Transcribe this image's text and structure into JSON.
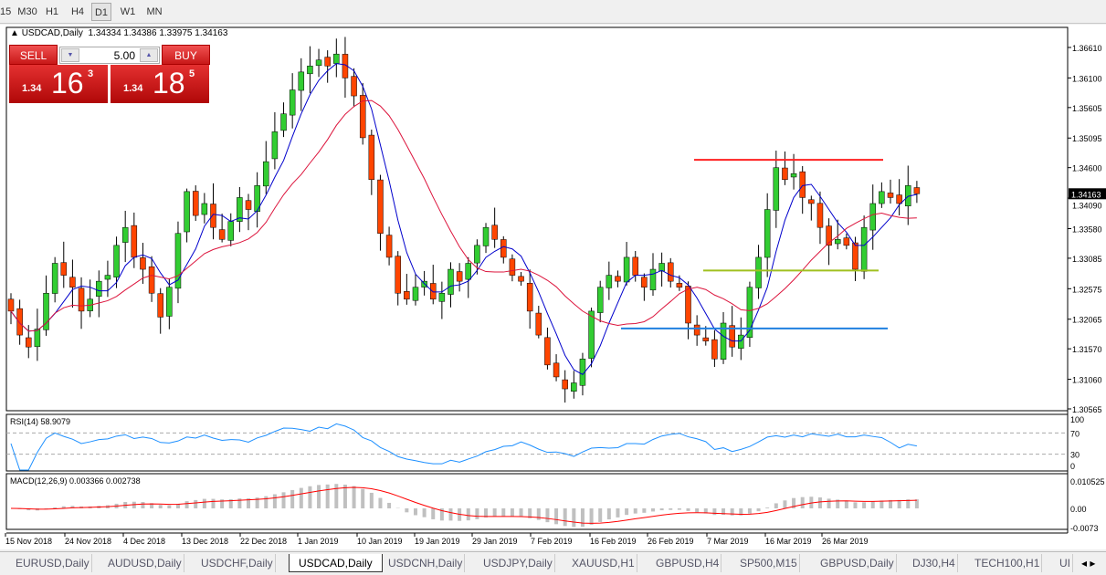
{
  "toolbar": {
    "timeframes": [
      "15",
      "M30",
      "H1",
      "H4",
      "D1",
      "W1",
      "MN"
    ],
    "active": "D1"
  },
  "chart": {
    "header": "USDCAD,Daily",
    "ohlc": "1.34334 1.34386 1.33975 1.34163",
    "sell_label": "SELL",
    "buy_label": "BUY",
    "lot": "5.00",
    "sell_prefix": "1.34",
    "sell_big": "16",
    "sell_sup": "3",
    "buy_prefix": "1.34",
    "buy_big": "18",
    "buy_sup": "5",
    "current_price": "1.34163"
  },
  "chart_data": {
    "type": "candlestick",
    "symbol": "USDCAD",
    "timeframe": "Daily",
    "price_ticks": [
      "1.36610",
      "1.36100",
      "1.35605",
      "1.35095",
      "1.34600",
      "1.34090",
      "1.33580",
      "1.33085",
      "1.32575",
      "1.32065",
      "1.31570",
      "1.31060",
      "1.30565"
    ],
    "ylim": [
      1.30565,
      1.3661
    ],
    "date_labels": [
      "15 Nov 2018",
      "24 Nov 2018",
      "4 Dec 2018",
      "13 Dec 2018",
      "22 Dec 2018",
      "1 Jan 2019",
      "10 Jan 2019",
      "19 Jan 2019",
      "29 Jan 2019",
      "7 Feb 2019",
      "16 Feb 2019",
      "26 Feb 2019",
      "7 Mar 2019",
      "16 Mar 2019",
      "26 Mar 2019"
    ],
    "closes": [
      1.322,
      1.318,
      1.316,
      1.319,
      1.325,
      1.33,
      1.328,
      1.326,
      1.322,
      1.324,
      1.327,
      1.328,
      1.333,
      1.336,
      1.331,
      1.329,
      1.325,
      1.321,
      1.326,
      1.335,
      1.342,
      1.338,
      1.34,
      1.336,
      1.334,
      1.337,
      1.341,
      1.339,
      1.343,
      1.347,
      1.352,
      1.355,
      1.359,
      1.362,
      1.363,
      1.364,
      1.363,
      1.365,
      1.361,
      1.358,
      1.351,
      1.344,
      1.335,
      1.331,
      1.325,
      1.324,
      1.326,
      1.327,
      1.324,
      1.325,
      1.329,
      1.327,
      1.33,
      1.333,
      1.336,
      1.334,
      1.331,
      1.328,
      1.327,
      1.322,
      1.318,
      1.313,
      1.311,
      1.309,
      1.31,
      1.314,
      1.322,
      1.326,
      1.328,
      1.327,
      1.331,
      1.328,
      1.326,
      1.329,
      1.33,
      1.327,
      1.326,
      1.32,
      1.318,
      1.317,
      1.314,
      1.32,
      1.316,
      1.318,
      1.326,
      1.331,
      1.339,
      1.346,
      1.344,
      1.345,
      1.341,
      1.34,
      1.336,
      1.333,
      1.334,
      1.333,
      1.329,
      1.336,
      1.34,
      1.342,
      1.341,
      1.34,
      1.343,
      1.34163
    ],
    "hlines": [
      {
        "price": 1.3473,
        "color": "#ff2020"
      },
      {
        "price": 1.3288,
        "color": "#a0c020"
      },
      {
        "price": 1.3191,
        "color": "#2080e0"
      }
    ],
    "colors": {
      "up": "#32cd32",
      "down": "#ff4500",
      "ma_fast": "#0000cc",
      "ma_slow": "#dc143c"
    },
    "rsi": {
      "label": "RSI(14) 58.9079",
      "ticks": [
        "100",
        "70",
        "30",
        "0"
      ],
      "color": "#1e90ff"
    },
    "macd": {
      "label": "MACD(12,26,9) 0.003366 0.002738",
      "ticks": [
        "0.010525",
        "0.00",
        "-0.0073"
      ],
      "signal_color": "#ff0000",
      "hist_color": "#c0c0c0"
    }
  },
  "tabs": [
    "EURUSD,Daily",
    "AUDUSD,Daily",
    "USDCHF,Daily",
    "USDCAD,Daily",
    "USDCNH,Daily",
    "USDJPY,Daily",
    "XAUUSD,H1",
    "GBPUSD,H4",
    "SP500,M15",
    "GBPUSD,Daily",
    "DJ30,H4",
    "TECH100,H1",
    "UI"
  ],
  "active_tab": "USDCAD,Daily"
}
